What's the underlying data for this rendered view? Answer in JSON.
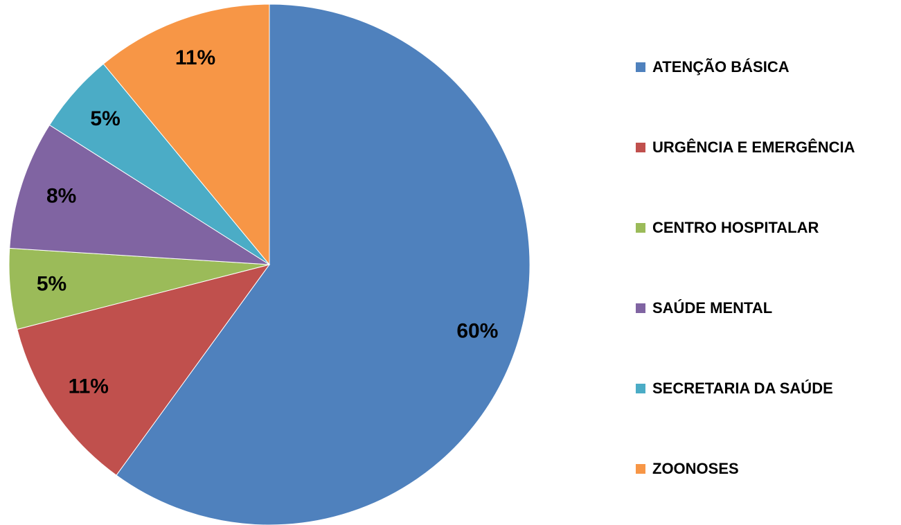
{
  "chart_data": {
    "type": "pie",
    "categories": [
      "ATENÇÃO BÁSICA",
      "URGÊNCIA E EMERGÊNCIA",
      "CENTRO HOSPITALAR",
      "SAÚDE MENTAL",
      "SECRETARIA DA SAÚDE",
      "ZOONOSES"
    ],
    "values": [
      60,
      11,
      5,
      8,
      5,
      11
    ],
    "value_labels": [
      "60%",
      "11%",
      "5%",
      "8%",
      "5%",
      "11%"
    ],
    "colors": [
      "#4f81bd",
      "#c0504d",
      "#9bbb59",
      "#8064a2",
      "#4bacc6",
      "#f79646"
    ],
    "legend": "right"
  }
}
